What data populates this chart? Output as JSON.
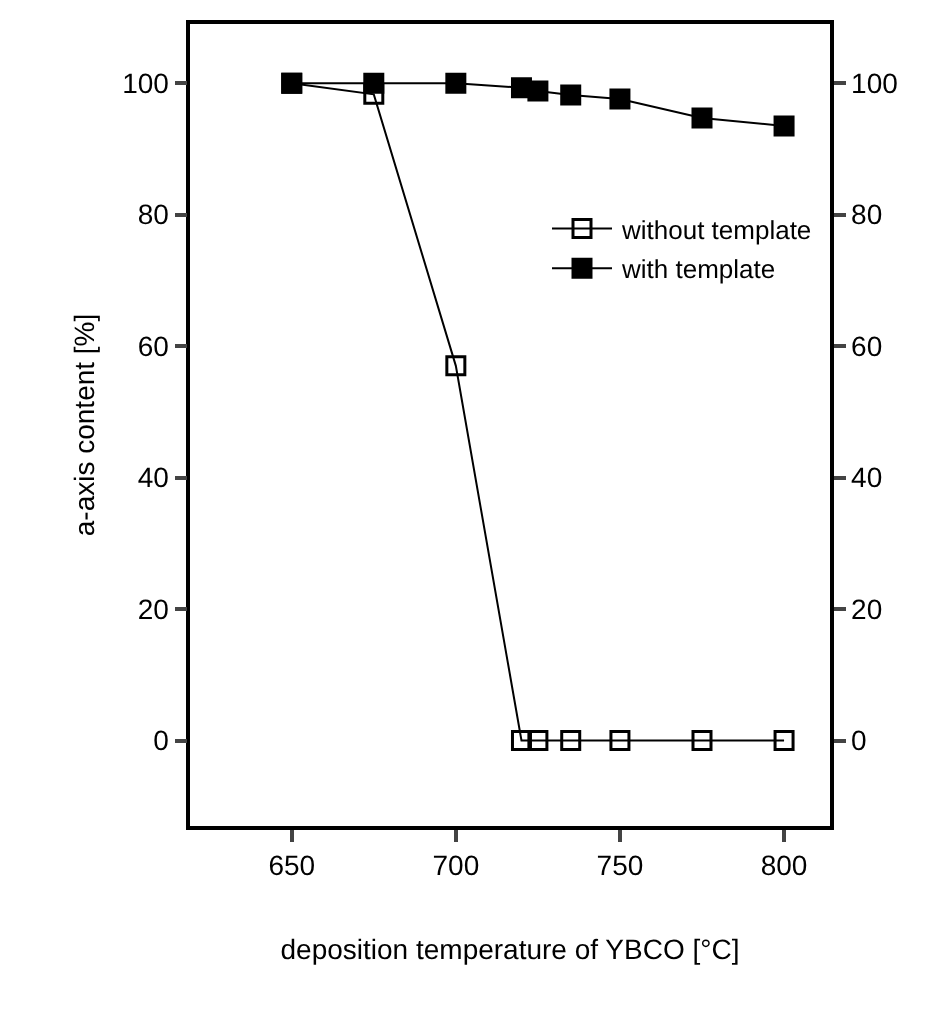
{
  "chart_data": {
    "type": "line",
    "xlabel": "deposition temperature of YBCO [°C]",
    "ylabel": "a-axis content [%]",
    "xlim": [
      619,
      814
    ],
    "xticks": [
      650,
      700,
      750,
      800
    ],
    "ylim": [
      -13,
      109
    ],
    "yticks": [
      0,
      20,
      40,
      60,
      80,
      100
    ],
    "y2lim": [
      -13,
      109
    ],
    "y2ticks": [
      0,
      20,
      40,
      60,
      80,
      100
    ],
    "grid": false,
    "legend": "right",
    "line_style": "solid",
    "series": [
      {
        "name": "without template",
        "color": "#000000",
        "marker": "square-open",
        "x": [
          650,
          675,
          700,
          720,
          725,
          735,
          750,
          775,
          800
        ],
        "values": [
          100,
          98.3,
          57,
          0,
          0,
          0,
          0,
          0,
          0
        ]
      },
      {
        "name": "with template",
        "color": "#000000",
        "marker": "square",
        "x": [
          650,
          675,
          700,
          720,
          725,
          735,
          750,
          775,
          800
        ],
        "values": [
          100,
          100,
          100,
          99.3,
          98.8,
          98.2,
          97.6,
          94.7,
          93.5
        ]
      }
    ]
  }
}
